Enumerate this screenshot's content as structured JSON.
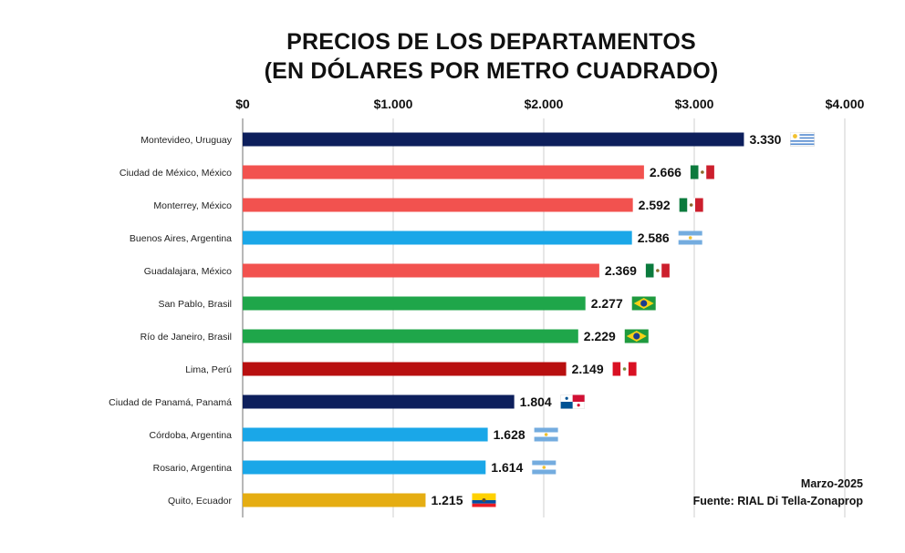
{
  "chart_data": {
    "type": "bar",
    "orientation": "horizontal",
    "title": "PRECIOS DE LOS DEPARTAMENTOS",
    "subtitle": "(EN DÓLARES POR METRO CUADRADO)",
    "xlim": [
      0,
      4000
    ],
    "x_ticks": [
      {
        "value": 0,
        "label": "$0"
      },
      {
        "value": 1000,
        "label": "$1.000"
      },
      {
        "value": 2000,
        "label": "$2.000"
      },
      {
        "value": 3000,
        "label": "$3.000"
      },
      {
        "value": 4000,
        "label": "$4.000"
      }
    ],
    "grid": true,
    "bars": [
      {
        "category": "Montevideo, Uruguay",
        "value": 3330,
        "label": "3.330",
        "color": "#0d1f5c",
        "flag": "uruguay-flag-icon"
      },
      {
        "category": "Ciudad de México, México",
        "value": 2666,
        "label": "2.666",
        "color": "#f2524f",
        "flag": "mexico-flag-icon"
      },
      {
        "category": "Monterrey, México",
        "value": 2592,
        "label": "2.592",
        "color": "#f2524f",
        "flag": "mexico-flag-icon"
      },
      {
        "category": "Buenos Aires, Argentina",
        "value": 2586,
        "label": "2.586",
        "color": "#1aa7e8",
        "flag": "argentina-flag-icon"
      },
      {
        "category": "Guadalajara, México",
        "value": 2369,
        "label": "2.369",
        "color": "#f2524f",
        "flag": "mexico-flag-icon"
      },
      {
        "category": "San Pablo, Brasil",
        "value": 2277,
        "label": "2.277",
        "color": "#1fa64a",
        "flag": "brazil-flag-icon"
      },
      {
        "category": "Río de Janeiro, Brasil",
        "value": 2229,
        "label": "2.229",
        "color": "#1fa64a",
        "flag": "brazil-flag-icon"
      },
      {
        "category": "Lima, Perú",
        "value": 2149,
        "label": "2.149",
        "color": "#b80f0f",
        "flag": "peru-flag-icon"
      },
      {
        "category": "Ciudad de Panamá, Panamá",
        "value": 1804,
        "label": "1.804",
        "color": "#0d1f5c",
        "flag": "panama-flag-icon"
      },
      {
        "category": "Córdoba, Argentina",
        "value": 1628,
        "label": "1.628",
        "color": "#1aa7e8",
        "flag": "argentina-flag-icon"
      },
      {
        "category": "Rosario, Argentina",
        "value": 1614,
        "label": "1.614",
        "color": "#1aa7e8",
        "flag": "argentina-flag-icon"
      },
      {
        "category": "Quito, Ecuador",
        "value": 1215,
        "label": "1.215",
        "color": "#e5ad12",
        "flag": "ecuador-flag-icon"
      }
    ]
  },
  "notes": {
    "date": "Marzo-2025",
    "source": "Fuente: RIAL Di Tella-Zonaprop"
  }
}
